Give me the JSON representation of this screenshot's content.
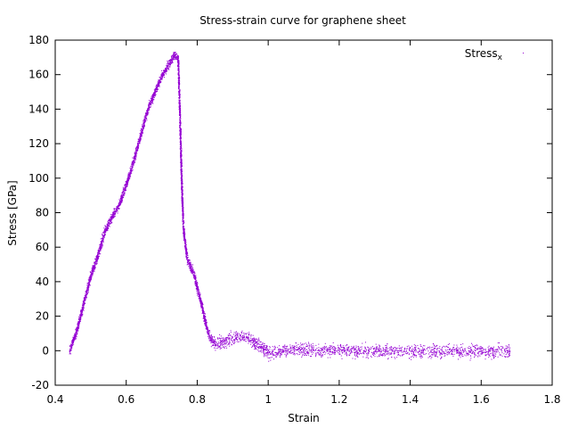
{
  "chart_data": {
    "type": "scatter",
    "title": "Stress-strain curve for graphene sheet",
    "xlabel": "Strain",
    "ylabel": "Stress [GPa]",
    "xlim": [
      0.4,
      1.8
    ],
    "ylim": [
      -20,
      180
    ],
    "xticks": [
      "0.4",
      "0.6",
      "0.8",
      "1",
      "1.2",
      "1.4",
      "1.6",
      "1.8"
    ],
    "yticks": [
      "-20",
      "0",
      "20",
      "40",
      "60",
      "80",
      "100",
      "120",
      "140",
      "160",
      "180"
    ],
    "grid": false,
    "legend_position": "top-right",
    "legend": {
      "base": "Stress",
      "sub": "x"
    },
    "series": [
      {
        "name": "Stressx",
        "color": "#9400d3",
        "points": [
          [
            0.44,
            0
          ],
          [
            0.46,
            12
          ],
          [
            0.48,
            28
          ],
          [
            0.5,
            44
          ],
          [
            0.52,
            56
          ],
          [
            0.54,
            70
          ],
          [
            0.56,
            78
          ],
          [
            0.58,
            85
          ],
          [
            0.6,
            97
          ],
          [
            0.62,
            110
          ],
          [
            0.64,
            125
          ],
          [
            0.66,
            140
          ],
          [
            0.68,
            150
          ],
          [
            0.7,
            160
          ],
          [
            0.72,
            166
          ],
          [
            0.735,
            172
          ],
          [
            0.745,
            170
          ],
          [
            0.75,
            140
          ],
          [
            0.755,
            100
          ],
          [
            0.76,
            72
          ],
          [
            0.77,
            54
          ],
          [
            0.79,
            44
          ],
          [
            0.81,
            28
          ],
          [
            0.83,
            10
          ],
          [
            0.85,
            4
          ],
          [
            0.88,
            6
          ],
          [
            0.91,
            8
          ],
          [
            0.94,
            8
          ],
          [
            0.97,
            4
          ],
          [
            1.0,
            -1
          ],
          [
            1.05,
            0
          ],
          [
            1.1,
            1
          ],
          [
            1.2,
            0
          ],
          [
            1.3,
            0
          ],
          [
            1.4,
            0
          ],
          [
            1.5,
            0
          ],
          [
            1.6,
            0
          ],
          [
            1.68,
            0
          ]
        ]
      }
    ]
  }
}
